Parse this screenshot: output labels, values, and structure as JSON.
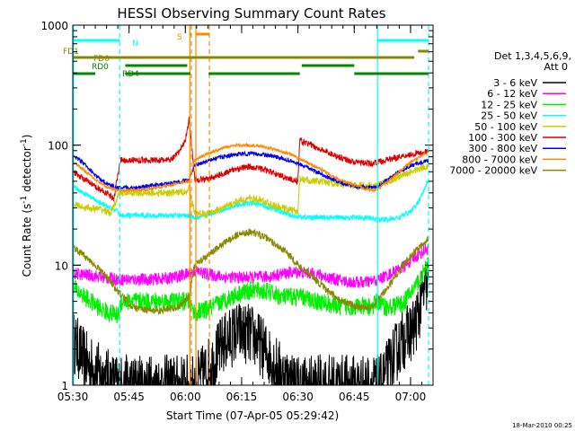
{
  "chart_data": {
    "type": "line",
    "title": "HESSI Observing Summary Count Rates",
    "xlabel": "Start Time (07-Apr-05 05:29:42)",
    "ylabel_main": "Count Rate (s",
    "ylabel_sup1": "-1",
    "ylabel_mid": " detector",
    "ylabel_sup2": "-1",
    "ylabel_end": ")",
    "y_scale": "log",
    "ylim": [
      1,
      1000
    ],
    "xlim_minutes": [
      330,
      426
    ],
    "y_ticks": [
      {
        "value": 1,
        "label": "1"
      },
      {
        "value": 10,
        "label": "10"
      },
      {
        "value": 100,
        "label": "100"
      },
      {
        "value": 1000,
        "label": "1000"
      }
    ],
    "x_ticks": [
      {
        "value": 330,
        "label": "05:30"
      },
      {
        "value": 345,
        "label": "05:45"
      },
      {
        "value": 360,
        "label": "06:00"
      },
      {
        "value": 375,
        "label": "06:15"
      },
      {
        "value": 390,
        "label": "06:30"
      },
      {
        "value": 405,
        "label": "06:45"
      },
      {
        "value": 420,
        "label": "07:00"
      }
    ],
    "legend_header_1": "Det 1,3,4,5,6,9,",
    "legend_header_2": "Att 0",
    "legend": [
      {
        "label": "3 - 6 keV",
        "color": "#000000"
      },
      {
        "label": "6 - 12 keV",
        "color": "#ff00ff"
      },
      {
        "label": "12 - 25 keV",
        "color": "#00ee00"
      },
      {
        "label": "25 - 50 keV",
        "color": "#00ffff"
      },
      {
        "label": "50 - 100 keV",
        "color": "#cccc00"
      },
      {
        "label": "100 - 300 keV",
        "color": "#dd0000"
      },
      {
        "label": "300 - 800 keV",
        "color": "#0000ee"
      },
      {
        "label": "800 - 7000 keV",
        "color": "#ff8800"
      },
      {
        "label": "7000 - 20000 keV",
        "color": "#888800"
      }
    ],
    "flag_labels": {
      "n": "N",
      "s": "S",
      "fd1": "FD1",
      "fd0": "FD0",
      "rd0": "RD0",
      "rd4": "RD4"
    },
    "vertical_lines": [
      {
        "x": 330.2,
        "color": "#00ffff",
        "style": "solid"
      },
      {
        "x": 342.5,
        "color": "#00ffff",
        "style": "dashed"
      },
      {
        "x": 361.2,
        "color": "#ff8800",
        "style": "solid"
      },
      {
        "x": 361.6,
        "color": "#ff8800",
        "style": "dashed"
      },
      {
        "x": 362.8,
        "color": "#ff8800",
        "style": "solid"
      },
      {
        "x": 366.4,
        "color": "#ff8800",
        "style": "dashed"
      },
      {
        "x": 411.2,
        "color": "#00ffff",
        "style": "solid"
      },
      {
        "x": 424.8,
        "color": "#00ffff",
        "style": "dashed"
      }
    ],
    "series": [
      {
        "name": "3 - 6 keV",
        "color": "#000000",
        "noise": 0.6,
        "floor": 1,
        "points": [
          [
            330.2,
            2.3
          ],
          [
            334,
            1.5
          ],
          [
            338,
            1.2
          ],
          [
            342,
            1.0
          ],
          [
            362.5,
            1.0
          ],
          [
            367,
            1.5
          ],
          [
            370,
            2.2
          ],
          [
            374,
            2.8
          ],
          [
            378,
            2.6
          ],
          [
            382,
            1.8
          ],
          [
            386,
            1.2
          ],
          [
            390,
            1.0
          ],
          [
            412,
            1.0
          ],
          [
            415,
            1.6
          ],
          [
            418,
            2.4
          ],
          [
            421,
            3.0
          ],
          [
            424.8,
            8.0
          ]
        ]
      },
      {
        "name": "6 - 12 keV",
        "color": "#ff00ff",
        "noise": 0.12,
        "floor": 0,
        "points": [
          [
            330.2,
            8.5
          ],
          [
            335,
            8.2
          ],
          [
            339,
            7.8
          ],
          [
            343,
            7.6
          ],
          [
            350,
            7.6
          ],
          [
            356,
            7.8
          ],
          [
            361,
            8.5
          ],
          [
            362.5,
            9.0
          ],
          [
            366,
            8.4
          ],
          [
            370,
            8.0
          ],
          [
            374,
            7.9
          ],
          [
            378,
            7.9
          ],
          [
            382,
            8.0
          ],
          [
            386,
            8.5
          ],
          [
            390,
            8.8
          ],
          [
            395,
            8.4
          ],
          [
            400,
            7.6
          ],
          [
            404,
            7.2
          ],
          [
            408,
            7.2
          ],
          [
            411,
            7.5
          ],
          [
            414,
            8.3
          ],
          [
            418,
            9.6
          ],
          [
            421,
            11.5
          ],
          [
            424.8,
            14.0
          ]
        ]
      },
      {
        "name": "12 - 25 keV",
        "color": "#00ee00",
        "noise": 0.18,
        "floor": 0,
        "points": [
          [
            330.2,
            6.5
          ],
          [
            334,
            5.2
          ],
          [
            338,
            4.2
          ],
          [
            342,
            3.8
          ],
          [
            343,
            5.0
          ],
          [
            350,
            5.0
          ],
          [
            356,
            5.0
          ],
          [
            361,
            5.0
          ],
          [
            362.5,
            4.0
          ],
          [
            366,
            4.3
          ],
          [
            370,
            5.0
          ],
          [
            374,
            5.8
          ],
          [
            378,
            6.2
          ],
          [
            382,
            6.0
          ],
          [
            386,
            5.4
          ],
          [
            390,
            5.5
          ],
          [
            395,
            5.0
          ],
          [
            400,
            4.6
          ],
          [
            405,
            4.5
          ],
          [
            410,
            4.5
          ],
          [
            411,
            5.0
          ],
          [
            414,
            4.4
          ],
          [
            418,
            4.8
          ],
          [
            421,
            6.5
          ],
          [
            424.8,
            10.0
          ]
        ]
      },
      {
        "name": "25 - 50 keV",
        "color": "#00ffff",
        "noise": 0.05,
        "floor": 0,
        "points": [
          [
            330.2,
            45
          ],
          [
            334,
            38
          ],
          [
            338,
            32
          ],
          [
            342,
            28
          ],
          [
            342.6,
            26
          ],
          [
            350,
            26
          ],
          [
            356,
            26
          ],
          [
            361,
            26
          ],
          [
            362.5,
            25
          ],
          [
            366,
            26
          ],
          [
            370,
            29
          ],
          [
            374,
            32
          ],
          [
            377,
            33
          ],
          [
            380,
            32
          ],
          [
            384,
            29
          ],
          [
            388,
            26
          ],
          [
            392,
            25
          ],
          [
            396,
            25
          ],
          [
            400,
            25
          ],
          [
            404,
            25
          ],
          [
            408,
            25
          ],
          [
            411,
            24
          ],
          [
            414,
            24
          ],
          [
            417,
            25
          ],
          [
            420,
            28
          ],
          [
            422,
            33
          ],
          [
            424.8,
            52
          ]
        ]
      },
      {
        "name": "50 - 100 keV",
        "color": "#cccc00",
        "noise": 0.07,
        "floor": 0,
        "points": [
          [
            330.2,
            32
          ],
          [
            334,
            30
          ],
          [
            338,
            29
          ],
          [
            340,
            27
          ],
          [
            342.6,
            40
          ],
          [
            350,
            40
          ],
          [
            356,
            40
          ],
          [
            360,
            41
          ],
          [
            361,
            44
          ],
          [
            362.5,
            27
          ],
          [
            366,
            27
          ],
          [
            370,
            30
          ],
          [
            374,
            34
          ],
          [
            377,
            36
          ],
          [
            380,
            35
          ],
          [
            384,
            31
          ],
          [
            388,
            29
          ],
          [
            390,
            28
          ],
          [
            390.5,
            52
          ],
          [
            395,
            50
          ],
          [
            400,
            48
          ],
          [
            405,
            46
          ],
          [
            410,
            46
          ],
          [
            411,
            46
          ],
          [
            414,
            50
          ],
          [
            417,
            54
          ],
          [
            420,
            60
          ],
          [
            424.8,
            68
          ]
        ]
      },
      {
        "name": "100 - 300 keV",
        "color": "#dd0000",
        "noise": 0.06,
        "floor": 0,
        "points": [
          [
            330.2,
            60
          ],
          [
            333,
            52
          ],
          [
            336,
            45
          ],
          [
            339,
            40
          ],
          [
            341,
            36
          ],
          [
            342.6,
            75
          ],
          [
            350,
            75
          ],
          [
            356,
            75
          ],
          [
            358,
            85
          ],
          [
            360,
            110
          ],
          [
            361,
            165
          ],
          [
            362.5,
            52
          ],
          [
            366,
            52
          ],
          [
            370,
            58
          ],
          [
            374,
            64
          ],
          [
            377,
            66
          ],
          [
            380,
            64
          ],
          [
            384,
            58
          ],
          [
            388,
            52
          ],
          [
            390,
            50
          ],
          [
            390.5,
            110
          ],
          [
            395,
            95
          ],
          [
            400,
            82
          ],
          [
            405,
            72
          ],
          [
            410,
            70
          ],
          [
            411,
            72
          ],
          [
            414,
            76
          ],
          [
            417,
            80
          ],
          [
            420,
            84
          ],
          [
            424.8,
            88
          ]
        ]
      },
      {
        "name": "300 - 800 keV",
        "color": "#0000ee",
        "noise": 0.04,
        "floor": 0,
        "points": [
          [
            330.2,
            82
          ],
          [
            333,
            70
          ],
          [
            336,
            56
          ],
          [
            339,
            48
          ],
          [
            342,
            44
          ],
          [
            346,
            44
          ],
          [
            350,
            46
          ],
          [
            354,
            47
          ],
          [
            358,
            49
          ],
          [
            361,
            52
          ],
          [
            362.5,
            68
          ],
          [
            366,
            74
          ],
          [
            370,
            80
          ],
          [
            374,
            84
          ],
          [
            377,
            85
          ],
          [
            380,
            84
          ],
          [
            384,
            80
          ],
          [
            388,
            74
          ],
          [
            390,
            70
          ],
          [
            394,
            62
          ],
          [
            398,
            54
          ],
          [
            402,
            48
          ],
          [
            406,
            45
          ],
          [
            410,
            44
          ],
          [
            411,
            45
          ],
          [
            414,
            52
          ],
          [
            417,
            60
          ],
          [
            420,
            68
          ],
          [
            424.8,
            74
          ]
        ]
      },
      {
        "name": "800 - 7000 keV",
        "color": "#ff8800",
        "noise": 0.03,
        "floor": 0,
        "points": [
          [
            330.2,
            72
          ],
          [
            333,
            62
          ],
          [
            336,
            52
          ],
          [
            339,
            45
          ],
          [
            342,
            42
          ],
          [
            346,
            42
          ],
          [
            350,
            43
          ],
          [
            354,
            45
          ],
          [
            358,
            48
          ],
          [
            361,
            50
          ],
          [
            362.5,
            75
          ],
          [
            366,
            85
          ],
          [
            370,
            95
          ],
          [
            374,
            100
          ],
          [
            377,
            100
          ],
          [
            380,
            98
          ],
          [
            384,
            92
          ],
          [
            388,
            84
          ],
          [
            390,
            78
          ],
          [
            394,
            68
          ],
          [
            398,
            58
          ],
          [
            402,
            50
          ],
          [
            406,
            45
          ],
          [
            410,
            42
          ],
          [
            411,
            42
          ],
          [
            414,
            50
          ],
          [
            417,
            60
          ],
          [
            420,
            72
          ],
          [
            424.8,
            88
          ]
        ]
      },
      {
        "name": "7000 - 20000 keV",
        "color": "#888800",
        "noise": 0.07,
        "floor": 0,
        "points": [
          [
            330.2,
            14
          ],
          [
            333,
            12
          ],
          [
            336,
            10
          ],
          [
            339,
            8.0
          ],
          [
            342,
            6.0
          ],
          [
            346,
            4.5
          ],
          [
            350,
            4.2
          ],
          [
            354,
            4.2
          ],
          [
            358,
            4.5
          ],
          [
            361,
            5.5
          ],
          [
            362.5,
            10
          ],
          [
            366,
            12
          ],
          [
            370,
            15
          ],
          [
            374,
            18
          ],
          [
            377,
            19
          ],
          [
            380,
            18
          ],
          [
            384,
            15
          ],
          [
            388,
            12
          ],
          [
            390,
            10
          ],
          [
            394,
            8
          ],
          [
            398,
            6
          ],
          [
            402,
            5
          ],
          [
            406,
            4.5
          ],
          [
            410,
            4.5
          ],
          [
            411,
            5.0
          ],
          [
            414,
            6.5
          ],
          [
            417,
            9.0
          ],
          [
            420,
            12
          ],
          [
            424.8,
            17
          ]
        ]
      }
    ],
    "flags": [
      {
        "label_key": "n",
        "color": "#00ffff",
        "segments": [
          [
            330.2,
            342.5
          ],
          [
            411.2,
            424.8
          ]
        ],
        "y": 45
      },
      {
        "label_key": "s",
        "color": "#ff8800",
        "segments": [
          [
            361.2,
            361.6
          ],
          [
            362.8,
            366.4
          ]
        ],
        "y": 38
      },
      {
        "label_key": "fd1",
        "color": "#888800",
        "segments": [
          [
            422,
            424.8
          ]
        ],
        "y": 57
      },
      {
        "label_key": "fd0",
        "color": "#888800",
        "segments": [
          [
            330.2,
            421
          ]
        ],
        "y": 64
      },
      {
        "label_key": "rd0",
        "color": "#008800",
        "segments": [
          [
            344,
            360.5
          ],
          [
            391,
            405
          ]
        ],
        "y": 73
      },
      {
        "label_key": "rd4",
        "color": "#008800",
        "segments": [
          [
            330.2,
            336
          ],
          [
            344,
            361.3
          ],
          [
            366.2,
            390.5
          ],
          [
            405,
            424.8
          ]
        ],
        "y": 82
      }
    ]
  },
  "footer": {
    "timestamp": "18-Mar-2010 00:25"
  }
}
